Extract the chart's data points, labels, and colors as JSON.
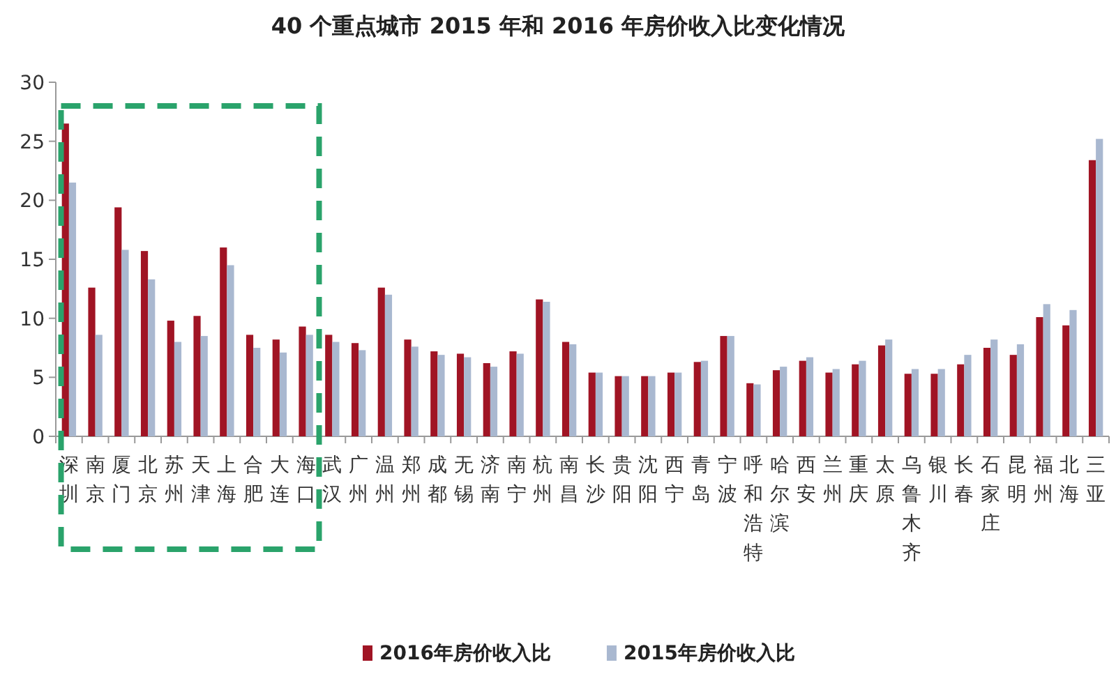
{
  "chart_data": {
    "type": "bar",
    "title": "40 个重点城市 2015 年和 2016 年房价收入比变化情况",
    "categories": [
      "深圳",
      "南京",
      "厦门",
      "北京",
      "苏州",
      "天津",
      "上海",
      "合肥",
      "大连",
      "海口",
      "武汉",
      "广州",
      "温州",
      "郑州",
      "成都",
      "无锡",
      "济南",
      "南宁",
      "杭州",
      "南昌",
      "长沙",
      "贵阳",
      "沈阳",
      "西宁",
      "青岛",
      "宁波",
      "呼和浩特",
      "哈尔滨",
      "西安",
      "兰州",
      "重庆",
      "太原",
      "乌鲁木齐",
      "银川",
      "长春",
      "石家庄",
      "昆明",
      "福州",
      "北海",
      "三亚"
    ],
    "series": [
      {
        "name": "2016年房价收入比",
        "color": "#a01424",
        "values": [
          26.5,
          12.6,
          19.4,
          15.7,
          9.8,
          10.2,
          16.0,
          8.6,
          8.2,
          9.3,
          8.6,
          7.9,
          12.6,
          8.2,
          7.2,
          7.0,
          6.2,
          7.2,
          11.6,
          8.0,
          5.4,
          5.1,
          5.1,
          5.4,
          6.3,
          8.5,
          4.5,
          5.6,
          6.4,
          5.4,
          6.1,
          7.7,
          5.3,
          5.3,
          6.1,
          7.5,
          6.9,
          10.1,
          9.4,
          23.4
        ]
      },
      {
        "name": "2015年房价收入比",
        "color": "#a9b8d0",
        "values": [
          21.5,
          8.6,
          15.8,
          13.3,
          8.0,
          8.5,
          14.5,
          7.5,
          7.1,
          8.6,
          8.0,
          7.3,
          12.0,
          7.6,
          6.9,
          6.7,
          5.9,
          7.0,
          11.4,
          7.8,
          5.4,
          5.1,
          5.1,
          5.4,
          6.4,
          8.5,
          4.4,
          5.9,
          6.7,
          5.7,
          6.4,
          8.2,
          5.7,
          5.7,
          6.9,
          8.2,
          7.8,
          11.2,
          10.7,
          25.2
        ]
      }
    ],
    "ylim": [
      0,
      30
    ],
    "yticks": [
      0,
      5,
      10,
      15,
      20,
      25,
      30
    ],
    "grid": false,
    "legend": "bottom"
  }
}
